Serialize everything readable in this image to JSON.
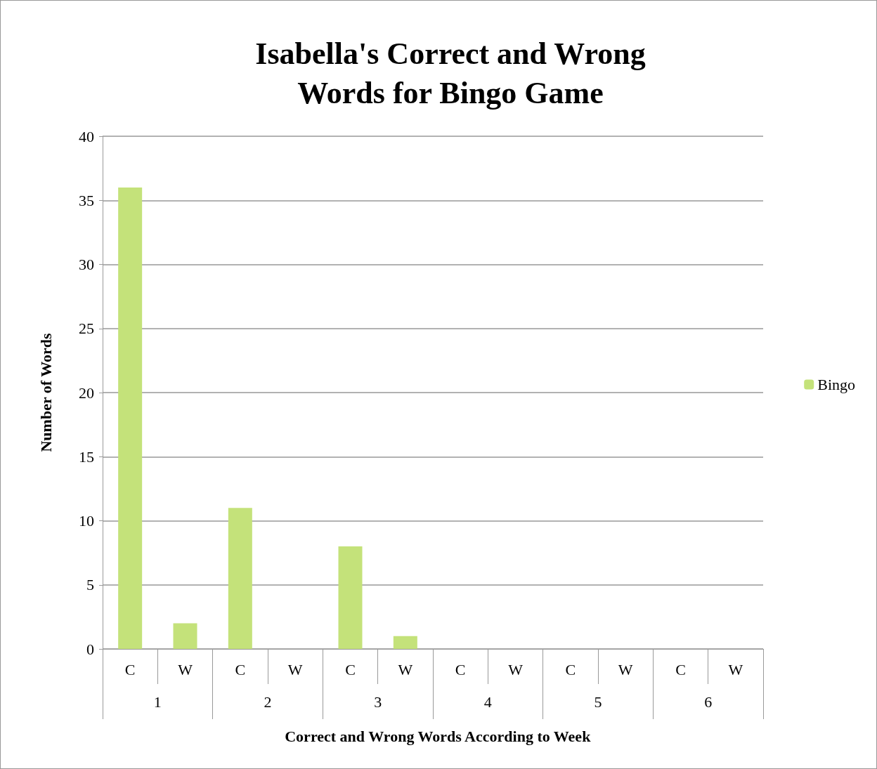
{
  "chart_data": {
    "type": "bar",
    "title": "Isabella's Correct and Wrong\nWords for Bingo Game",
    "xlabel": "Correct and Wrong Words According to Week",
    "ylabel": "Number of Words",
    "categories": [
      "C",
      "W",
      "C",
      "W",
      "C",
      "W",
      "C",
      "W",
      "C",
      "W",
      "C",
      "W"
    ],
    "annotations": [
      "1",
      "2",
      "3",
      "4",
      "5",
      "6"
    ],
    "series": [
      {
        "name": "Bingo",
        "color": "#c4e27a",
        "values": [
          36,
          2,
          11,
          0,
          8,
          1,
          0,
          0,
          0,
          0,
          0,
          0
        ]
      }
    ],
    "ylim": [
      0,
      40
    ],
    "yticks": [
      0,
      5,
      10,
      15,
      20,
      25,
      30,
      35,
      40
    ],
    "grid": "y",
    "legend": "right"
  }
}
